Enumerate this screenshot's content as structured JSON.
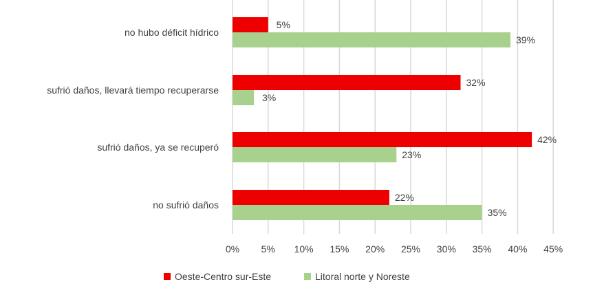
{
  "chart_data": {
    "type": "bar",
    "orientation": "horizontal",
    "title": "",
    "xlabel": "",
    "ylabel": "",
    "categories": [
      "no hubo déficit hídrico",
      "sufrió daños, llevará tiempo recuperarse",
      "sufrió daños, ya se recuperó",
      "no sufrió daños"
    ],
    "series": [
      {
        "name": "Oeste-Centro sur-Este",
        "color": "#EE0000",
        "values": [
          5,
          32,
          42,
          22
        ],
        "labels": [
          "5%",
          "32%",
          "42%",
          "22%"
        ]
      },
      {
        "name": "Litoral norte y Noreste",
        "color": "#A9D18E",
        "values": [
          39,
          3,
          23,
          35
        ],
        "labels": [
          "39%",
          "3%",
          "23%",
          "35%"
        ]
      }
    ],
    "xlim": [
      0,
      45
    ],
    "xticks": [
      0,
      5,
      10,
      15,
      20,
      25,
      30,
      35,
      40,
      45
    ],
    "xtick_labels": [
      "0%",
      "5%",
      "10%",
      "15%",
      "20%",
      "25%",
      "30%",
      "35%",
      "40%",
      "45%"
    ],
    "grid": true,
    "legend": "bottom"
  }
}
